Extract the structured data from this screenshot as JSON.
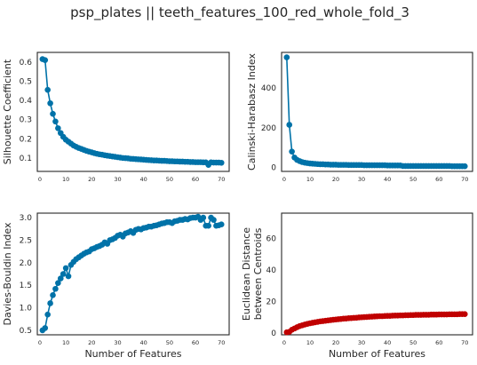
{
  "figure": {
    "suptitle": "psp_plates || teeth_features_100_red_whole_fold_3"
  },
  "colors": {
    "blue": "#0072a8",
    "red": "#c00000",
    "axes_edge": "#262626"
  },
  "chart_data": [
    {
      "type": "line",
      "id": "silhouette",
      "title": "",
      "xlabel": "",
      "ylabel": "Silhouette Coefficient",
      "color": "blue",
      "xlim": [
        -1,
        73
      ],
      "ylim": [
        0.03,
        0.65
      ],
      "xticks": [
        0,
        10,
        20,
        30,
        40,
        50,
        60,
        70
      ],
      "yticks": [
        0.1,
        0.2,
        0.3,
        0.4,
        0.5,
        0.6
      ],
      "x": [
        1,
        2,
        3,
        4,
        5,
        6,
        7,
        8,
        9,
        10,
        11,
        12,
        13,
        14,
        15,
        16,
        17,
        18,
        19,
        20,
        21,
        22,
        23,
        24,
        25,
        26,
        27,
        28,
        29,
        30,
        31,
        32,
        33,
        34,
        35,
        36,
        37,
        38,
        39,
        40,
        41,
        42,
        43,
        44,
        45,
        46,
        47,
        48,
        49,
        50,
        51,
        52,
        53,
        54,
        55,
        56,
        57,
        58,
        59,
        60,
        61,
        62,
        63,
        64,
        65,
        66,
        67,
        68,
        69,
        70
      ],
      "y": [
        0.615,
        0.61,
        0.455,
        0.385,
        0.33,
        0.29,
        0.255,
        0.23,
        0.21,
        0.195,
        0.185,
        0.175,
        0.165,
        0.158,
        0.152,
        0.147,
        0.142,
        0.137,
        0.133,
        0.129,
        0.125,
        0.122,
        0.119,
        0.117,
        0.114,
        0.112,
        0.11,
        0.108,
        0.106,
        0.104,
        0.102,
        0.1,
        0.099,
        0.098,
        0.096,
        0.095,
        0.094,
        0.093,
        0.092,
        0.091,
        0.09,
        0.089,
        0.088,
        0.087,
        0.087,
        0.086,
        0.085,
        0.085,
        0.084,
        0.083,
        0.083,
        0.082,
        0.082,
        0.081,
        0.081,
        0.08,
        0.08,
        0.079,
        0.079,
        0.078,
        0.078,
        0.078,
        0.077,
        0.077,
        0.064,
        0.077,
        0.076,
        0.076,
        0.076,
        0.075
      ]
    },
    {
      "type": "line",
      "id": "calinski",
      "title": "",
      "xlabel": "",
      "ylabel": "Calinski-Harabasz Index",
      "color": "blue",
      "xlim": [
        -1,
        73
      ],
      "ylim": [
        -20,
        580
      ],
      "xticks": [
        0,
        10,
        20,
        30,
        40,
        50,
        60,
        70
      ],
      "yticks": [
        0,
        200,
        400
      ],
      "x": [
        1,
        2,
        3,
        4,
        5,
        6,
        7,
        8,
        9,
        10,
        11,
        12,
        13,
        14,
        15,
        16,
        17,
        18,
        19,
        20,
        21,
        22,
        23,
        24,
        25,
        26,
        27,
        28,
        29,
        30,
        31,
        32,
        33,
        34,
        35,
        36,
        37,
        38,
        39,
        40,
        41,
        42,
        43,
        44,
        45,
        46,
        47,
        48,
        49,
        50,
        51,
        52,
        53,
        54,
        55,
        56,
        57,
        58,
        59,
        60,
        61,
        62,
        63,
        64,
        65,
        66,
        67,
        68,
        69,
        70
      ],
      "y": [
        555,
        215,
        80,
        50,
        38,
        32,
        27,
        24,
        22,
        20,
        19,
        18,
        17,
        16,
        16,
        15,
        15,
        14,
        14,
        14,
        13,
        13,
        13,
        13,
        12,
        12,
        12,
        12,
        12,
        12,
        11,
        11,
        11,
        11,
        11,
        11,
        11,
        11,
        11,
        10,
        10,
        10,
        10,
        10,
        10,
        7,
        7,
        7,
        7,
        7,
        7,
        7,
        7,
        7,
        7,
        7,
        7,
        7,
        7,
        7,
        7,
        7,
        7,
        7,
        6,
        6,
        6,
        6,
        6,
        6
      ]
    },
    {
      "type": "line",
      "id": "davies",
      "title": "",
      "xlabel": "Number of Features",
      "ylabel": "Davies-Bouldin Index",
      "color": "blue",
      "xlim": [
        -1,
        73
      ],
      "ylim": [
        0.4,
        3.1
      ],
      "xticks": [
        0,
        10,
        20,
        30,
        40,
        50,
        60,
        70
      ],
      "yticks": [
        0.5,
        1.0,
        1.5,
        2.0,
        2.5,
        3.0
      ],
      "x": [
        1,
        2,
        3,
        4,
        5,
        6,
        7,
        8,
        9,
        10,
        11,
        12,
        13,
        14,
        15,
        16,
        17,
        18,
        19,
        20,
        21,
        22,
        23,
        24,
        25,
        26,
        27,
        28,
        29,
        30,
        31,
        32,
        33,
        34,
        35,
        36,
        37,
        38,
        39,
        40,
        41,
        42,
        43,
        44,
        45,
        46,
        47,
        48,
        49,
        50,
        51,
        52,
        53,
        54,
        55,
        56,
        57,
        58,
        59,
        60,
        61,
        62,
        63,
        64,
        65,
        66,
        67,
        68,
        69,
        70
      ],
      "y": [
        0.5,
        0.55,
        0.85,
        1.1,
        1.28,
        1.42,
        1.55,
        1.65,
        1.75,
        1.88,
        1.7,
        1.95,
        2.02,
        2.08,
        2.12,
        2.16,
        2.2,
        2.23,
        2.25,
        2.3,
        2.32,
        2.35,
        2.37,
        2.4,
        2.45,
        2.42,
        2.5,
        2.52,
        2.55,
        2.6,
        2.62,
        2.58,
        2.65,
        2.67,
        2.7,
        2.66,
        2.73,
        2.75,
        2.74,
        2.77,
        2.78,
        2.8,
        2.8,
        2.82,
        2.83,
        2.85,
        2.87,
        2.88,
        2.9,
        2.9,
        2.88,
        2.92,
        2.93,
        2.95,
        2.95,
        2.97,
        2.96,
        2.99,
        3.0,
        3.0,
        3.02,
        2.95,
        3.0,
        2.82,
        2.82,
        3.0,
        2.95,
        2.82,
        2.83,
        2.85
      ]
    },
    {
      "type": "line",
      "id": "euclidean",
      "title": "",
      "xlabel": "Number of Features",
      "ylabel": "Euclidean Distance\nbetween Centroids",
      "ylabel_lines": [
        "Euclidean Distance",
        "between Centroids"
      ],
      "color": "red",
      "xlim": [
        -1,
        73
      ],
      "ylim": [
        -1,
        76
      ],
      "xticks": [
        0,
        10,
        20,
        30,
        40,
        50,
        60,
        70
      ],
      "yticks": [
        0,
        20,
        40,
        60
      ],
      "x": [
        1,
        2,
        3,
        4,
        5,
        6,
        7,
        8,
        9,
        10,
        11,
        12,
        13,
        14,
        15,
        16,
        17,
        18,
        19,
        20,
        21,
        22,
        23,
        24,
        25,
        26,
        27,
        28,
        29,
        30,
        31,
        32,
        33,
        34,
        35,
        36,
        37,
        38,
        39,
        40,
        41,
        42,
        43,
        44,
        45,
        46,
        47,
        48,
        49,
        50,
        51,
        52,
        53,
        54,
        55,
        56,
        57,
        58,
        59,
        60,
        61,
        62,
        63,
        64,
        65,
        66,
        67,
        68,
        69,
        70
      ],
      "y": [
        0.6,
        0.9,
        2.2,
        3.0,
        3.8,
        4.5,
        5.0,
        5.5,
        5.9,
        6.3,
        6.6,
        6.9,
        7.2,
        7.5,
        7.7,
        7.9,
        8.1,
        8.3,
        8.5,
        8.7,
        8.9,
        9.0,
        9.2,
        9.3,
        9.5,
        9.6,
        9.7,
        9.8,
        10.0,
        10.1,
        10.2,
        10.3,
        10.4,
        10.5,
        10.6,
        10.7,
        10.8,
        10.8,
        10.9,
        11.0,
        11.0,
        11.1,
        11.2,
        11.2,
        11.3,
        11.3,
        11.4,
        11.4,
        11.5,
        11.5,
        11.6,
        11.6,
        11.6,
        11.7,
        11.7,
        11.7,
        11.8,
        11.8,
        11.8,
        11.9,
        11.9,
        11.9,
        11.9,
        12.0,
        12.0,
        12.0,
        12.0,
        12.1,
        12.1,
        12.1
      ]
    }
  ]
}
